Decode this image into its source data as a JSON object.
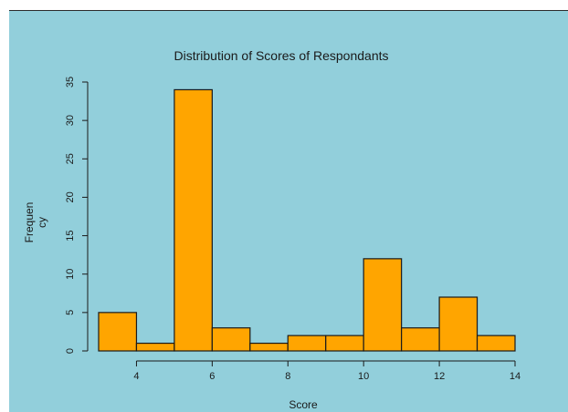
{
  "chart_data": {
    "type": "bar",
    "title": "Distribution of Scores of Respondants",
    "xlabel": "Score",
    "ylabel_lines": [
      "Frequen",
      "cy"
    ],
    "bins": [
      {
        "from": 3,
        "to": 4,
        "value": 5
      },
      {
        "from": 4,
        "to": 5,
        "value": 1
      },
      {
        "from": 5,
        "to": 6,
        "value": 34
      },
      {
        "from": 6,
        "to": 7,
        "value": 3
      },
      {
        "from": 7,
        "to": 8,
        "value": 1
      },
      {
        "from": 8,
        "to": 9,
        "value": 2
      },
      {
        "from": 9,
        "to": 10,
        "value": 2
      },
      {
        "from": 10,
        "to": 11,
        "value": 12
      },
      {
        "from": 11,
        "to": 12,
        "value": 3
      },
      {
        "from": 12,
        "to": 13,
        "value": 7
      },
      {
        "from": 13,
        "to": 14,
        "value": 2
      }
    ],
    "xlim": [
      3,
      14
    ],
    "ylim": [
      0,
      35
    ],
    "x_ticks": [
      4,
      6,
      8,
      10,
      12,
      14
    ],
    "y_ticks": [
      0,
      5,
      10,
      15,
      20,
      25,
      30,
      35
    ],
    "grid": false,
    "legend": "none"
  },
  "colors": {
    "background": "#92CFDB",
    "bar_fill": "#FFA500",
    "bar_stroke": "#1a1a1a",
    "axis": "#1a1a1a",
    "text": "#1a1a1a"
  }
}
